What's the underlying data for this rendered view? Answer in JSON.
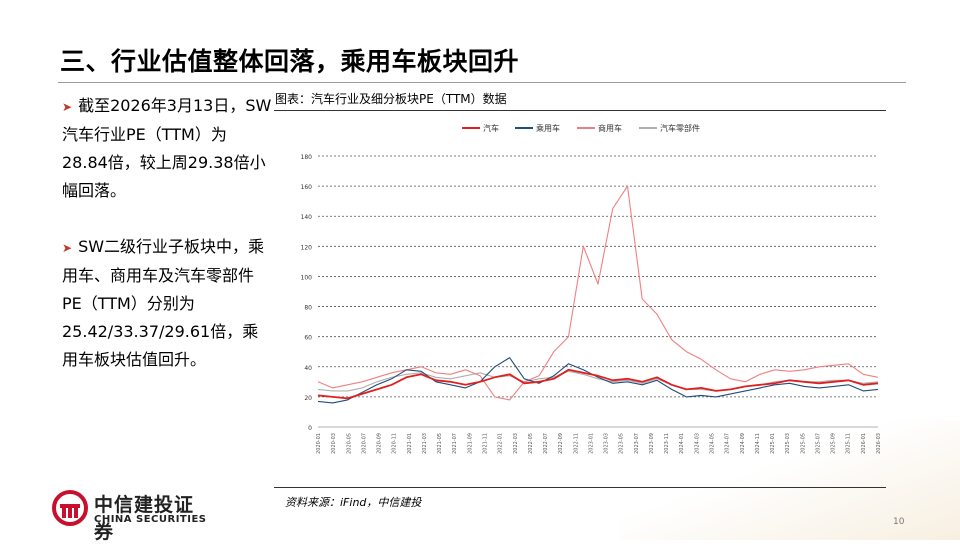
{
  "slide": {
    "title": "三、行业估值整体回落，乘用车板块回升",
    "bullets": [
      "截至2026年3月13日，SW汽车行业PE（TTM）为28.84倍，较上周29.38倍小幅回落。",
      "SW二级行业子板块中，乘用车、商用车及汽车零部件PE（TTM）分别为25.42/33.37/29.61倍，乘用车板块估值回升。"
    ],
    "figure_title": "图表：汽车行业及细分板块PE（TTM）数据",
    "source": "资料来源：iFind，中信建投",
    "page_number": "10",
    "logo_cn": "中信建投证券",
    "logo_en": "CHINA SECURITIES"
  },
  "chart_data": {
    "type": "line",
    "ylim": [
      0,
      180
    ],
    "yticks": [
      "0",
      "20",
      "40",
      "60",
      "80",
      "100",
      "120",
      "140",
      "160",
      "180"
    ],
    "xticks": [
      "2020-01",
      "2020-03",
      "2020-05",
      "2020-07",
      "2020-09",
      "2020-11",
      "2021-01",
      "2021-03",
      "2021-05",
      "2021-07",
      "2021-09",
      "2021-11",
      "2022-01",
      "2022-03",
      "2022-05",
      "2022-07",
      "2022-09",
      "2022-11",
      "2023-01",
      "2023-03",
      "2023-05",
      "2023-07",
      "2023-09",
      "2023-11",
      "2024-01",
      "2024-03",
      "2024-05",
      "2024-07",
      "2024-09",
      "2024-11",
      "2025-01",
      "2025-03",
      "2025-05",
      "2025-07",
      "2025-09",
      "2025-11",
      "2026-01",
      "2026-03"
    ],
    "legend_position": "top",
    "grid": "horizontal-dotted",
    "series": [
      {
        "name": "汽车",
        "color": "#e02020",
        "values": [
          21,
          20,
          19,
          22,
          25,
          28,
          33,
          35,
          31,
          30,
          28,
          30,
          33,
          35,
          29,
          30,
          32,
          38,
          36,
          34,
          31,
          32,
          30,
          33,
          28,
          25,
          26,
          24,
          25,
          27,
          28,
          29,
          31,
          30,
          29,
          30,
          31,
          28,
          29
        ]
      },
      {
        "name": "乘用车",
        "color": "#1f4e79",
        "values": [
          17,
          16,
          18,
          23,
          28,
          32,
          38,
          37,
          30,
          28,
          26,
          30,
          40,
          46,
          32,
          29,
          34,
          42,
          38,
          33,
          29,
          30,
          28,
          31,
          25,
          20,
          21,
          20,
          22,
          24,
          26,
          28,
          29,
          27,
          26,
          27,
          28,
          24,
          25
        ]
      },
      {
        "name": "商用车",
        "color": "#f08080",
        "values": [
          30,
          26,
          28,
          30,
          33,
          36,
          38,
          40,
          36,
          35,
          38,
          34,
          20,
          18,
          30,
          34,
          50,
          60,
          120,
          95,
          145,
          160,
          85,
          75,
          58,
          50,
          45,
          38,
          32,
          30,
          35,
          38,
          37,
          38,
          40,
          41,
          42,
          35,
          33
        ]
      },
      {
        "name": "汽车零部件",
        "color": "#b0b0b0",
        "values": [
          25,
          24,
          24,
          26,
          30,
          33,
          35,
          36,
          33,
          32,
          34,
          36,
          33,
          34,
          30,
          32,
          33,
          37,
          35,
          32,
          30,
          31,
          29,
          32,
          28,
          25,
          25,
          24,
          25,
          27,
          28,
          30,
          31,
          30,
          30,
          31,
          31,
          29,
          30
        ]
      }
    ]
  }
}
